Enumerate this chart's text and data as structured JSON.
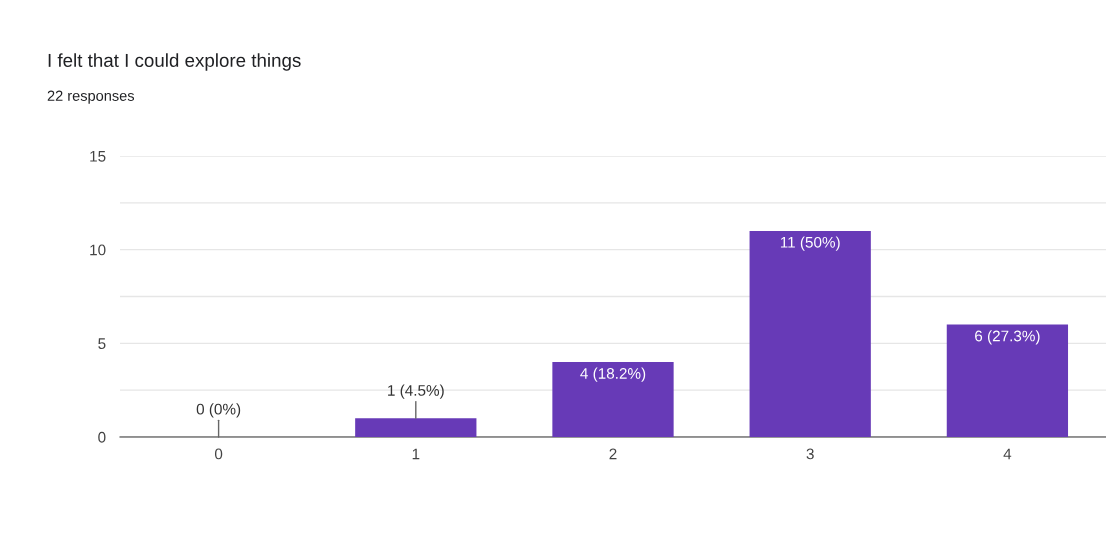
{
  "chart_data": {
    "type": "bar",
    "title": "I felt that I could explore things",
    "subtitle": "22 responses",
    "categories": [
      "0",
      "1",
      "2",
      "3",
      "4"
    ],
    "values": [
      0,
      1,
      4,
      11,
      6
    ],
    "value_labels": [
      "0 (0%)",
      "1 (4.5%)",
      "4 (18.2%)",
      "11 (50%)",
      "6 (27.3%)"
    ],
    "color": "#673ab7",
    "ylim": [
      0,
      15
    ],
    "yticks": [
      0,
      {
        "value": 2.5,
        "label": null
      },
      5,
      {
        "value": 7.5,
        "label": null
      },
      10,
      {
        "value": 12.5,
        "label": null
      },
      15
    ],
    "grid": "y",
    "legend": false
  }
}
